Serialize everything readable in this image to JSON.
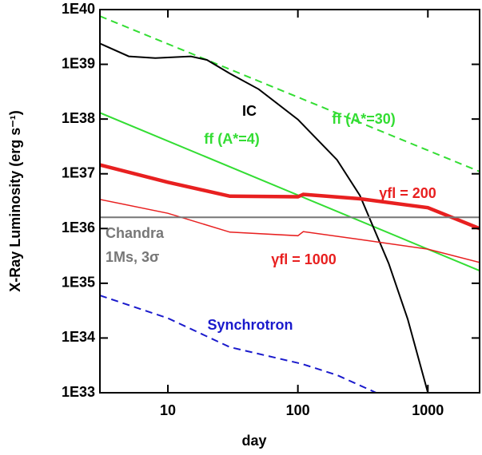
{
  "chart_data": {
    "type": "line",
    "xlabel": "day",
    "ylabel": "X-Ray Luminosity (erg s⁻¹)",
    "xscale": "log",
    "yscale": "log",
    "xlim": [
      3,
      2500
    ],
    "ylim": [
      1e+33,
      1e+40
    ],
    "xticks": [
      10,
      100,
      1000
    ],
    "yticks": [
      {
        "value": 1e+33,
        "label": "1E33"
      },
      {
        "value": 1e+34,
        "label": "1E34"
      },
      {
        "value": 1e+35,
        "label": "1E35"
      },
      {
        "value": 1e+36,
        "label": "1E36"
      },
      {
        "value": 1e+37,
        "label": "1E37"
      },
      {
        "value": 1e+38,
        "label": "1E38"
      },
      {
        "value": 1e+39,
        "label": "1E39"
      },
      {
        "value": 1e+40,
        "label": "1E40"
      }
    ],
    "series": [
      {
        "name": "ff (A*=30)",
        "color": "#33dd33",
        "style": "dashed",
        "width": 2,
        "x": [
          3,
          2500
        ],
        "values": [
          7.6e+39,
          1.1e+37
        ]
      },
      {
        "name": "ff (A*=4)",
        "color": "#33dd33",
        "style": "solid",
        "width": 2,
        "x": [
          3,
          2500
        ],
        "values": [
          1.3e+38,
          1.7e+35
        ]
      },
      {
        "name": "IC",
        "color": "#000000",
        "style": "solid",
        "width": 2,
        "x": [
          3,
          5,
          8,
          15,
          20,
          30,
          50,
          100,
          200,
          300,
          500,
          700,
          1000
        ],
        "values": [
          2.4e+39,
          1.4e+39,
          1.3e+39,
          1.4e+39,
          1.2e+39,
          6.8e+38,
          3.5e+38,
          9.8e+37,
          1.8e+37,
          4e+36,
          2.3e+35,
          2.2e+34,
          1e+33
        ]
      },
      {
        "name": "γfl = 200",
        "color": "#e82020",
        "style": "solid",
        "width": 4.5,
        "x": [
          3,
          10,
          30,
          100,
          110,
          300,
          1000,
          2500
        ],
        "values": [
          1.45e+37,
          7e+36,
          3.9e+36,
          3.8e+36,
          4.2e+36,
          3.5e+36,
          2.4e+36,
          1e+36
        ]
      },
      {
        "name": "γfl = 1000",
        "color": "#e82020",
        "style": "solid",
        "width": 1.5,
        "x": [
          3,
          10,
          30,
          100,
          110,
          300,
          1000,
          2500
        ],
        "values": [
          3.4e+36,
          1.9e+36,
          8.6e+35,
          7.4e+35,
          8.8e+35,
          6.3e+35,
          4.2e+35,
          2.4e+35
        ]
      },
      {
        "name": "Chandra",
        "color": "#777777",
        "style": "solid",
        "width": 2,
        "x": [
          3,
          2500
        ],
        "values": [
          1.6e+36,
          1.6e+36
        ]
      },
      {
        "name": "Synchrotron",
        "color": "#1a1acc",
        "style": "dashed",
        "width": 2,
        "x": [
          3,
          10,
          30,
          100,
          110,
          200,
          400
        ],
        "values": [
          6e+34,
          2.3e+34,
          6.8e+33,
          3.5e+33,
          3.3e+33,
          2.1e+33,
          1e+33
        ]
      }
    ],
    "annotations": [
      "1Ms, 3σ"
    ]
  }
}
